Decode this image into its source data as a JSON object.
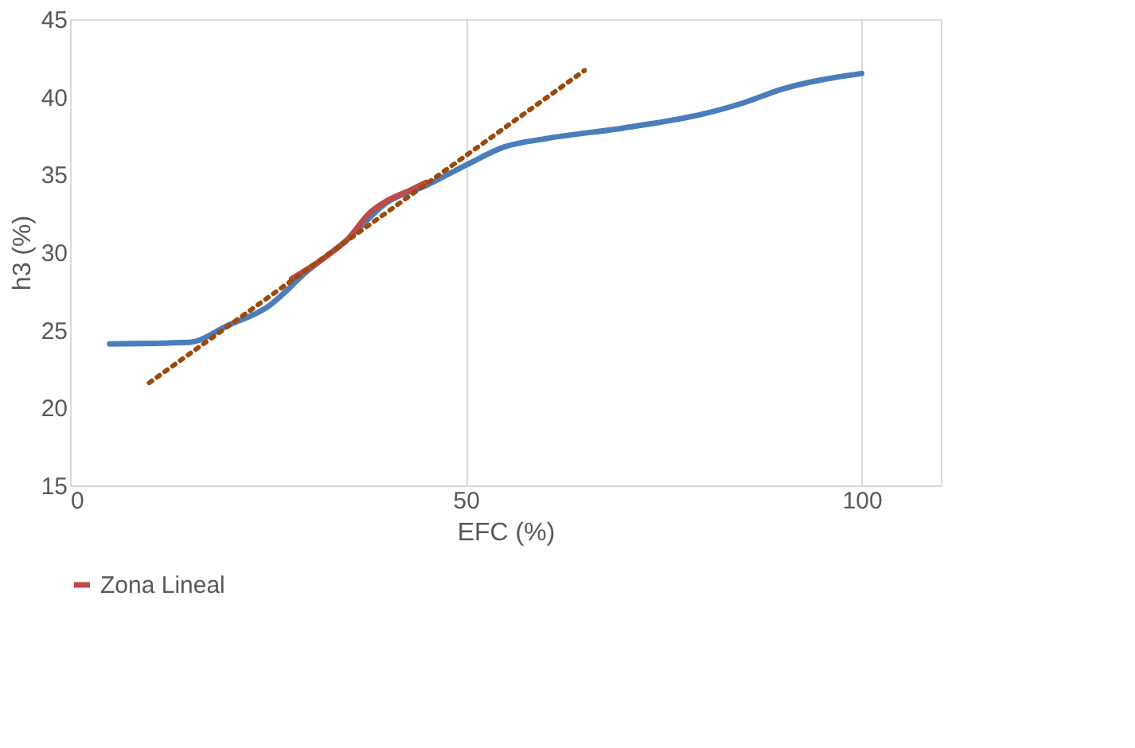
{
  "chart_data": {
    "type": "line",
    "xlabel": "EFC (%)",
    "ylabel": "h3 (%)",
    "xlim": [
      0,
      110
    ],
    "xticks": [
      0,
      50,
      100
    ],
    "ylim": [
      15,
      45
    ],
    "yticks": [
      15,
      20,
      25,
      30,
      35,
      40,
      45
    ],
    "grid": "x",
    "legend": "bottom",
    "line_style": "solid",
    "marker": "none",
    "series": [
      {
        "color": "#4a7ebb",
        "x": [
          5,
          15,
          20,
          25,
          30,
          35,
          40,
          45,
          50,
          55,
          60,
          70,
          80,
          85,
          90,
          100
        ],
        "values": [
          24.1,
          24.2,
          25.3,
          26.5,
          28.8,
          30.8,
          33.2,
          34.3,
          35.6,
          36.8,
          37.3,
          38.0,
          38.9,
          39.6,
          40.5,
          41.5
        ]
      },
      {
        "name": "Zona Lineal",
        "color": "#be4b48",
        "x": [
          28,
          32,
          35,
          38,
          40,
          43,
          45
        ],
        "values": [
          28.3,
          29.6,
          30.8,
          32.6,
          33.3,
          34.0,
          34.5
        ]
      },
      {
        "type": "line",
        "line_style": "dotted",
        "color": "#9c4a0c",
        "x": [
          10,
          65
        ],
        "values": [
          21.6,
          41.7
        ]
      }
    ]
  }
}
